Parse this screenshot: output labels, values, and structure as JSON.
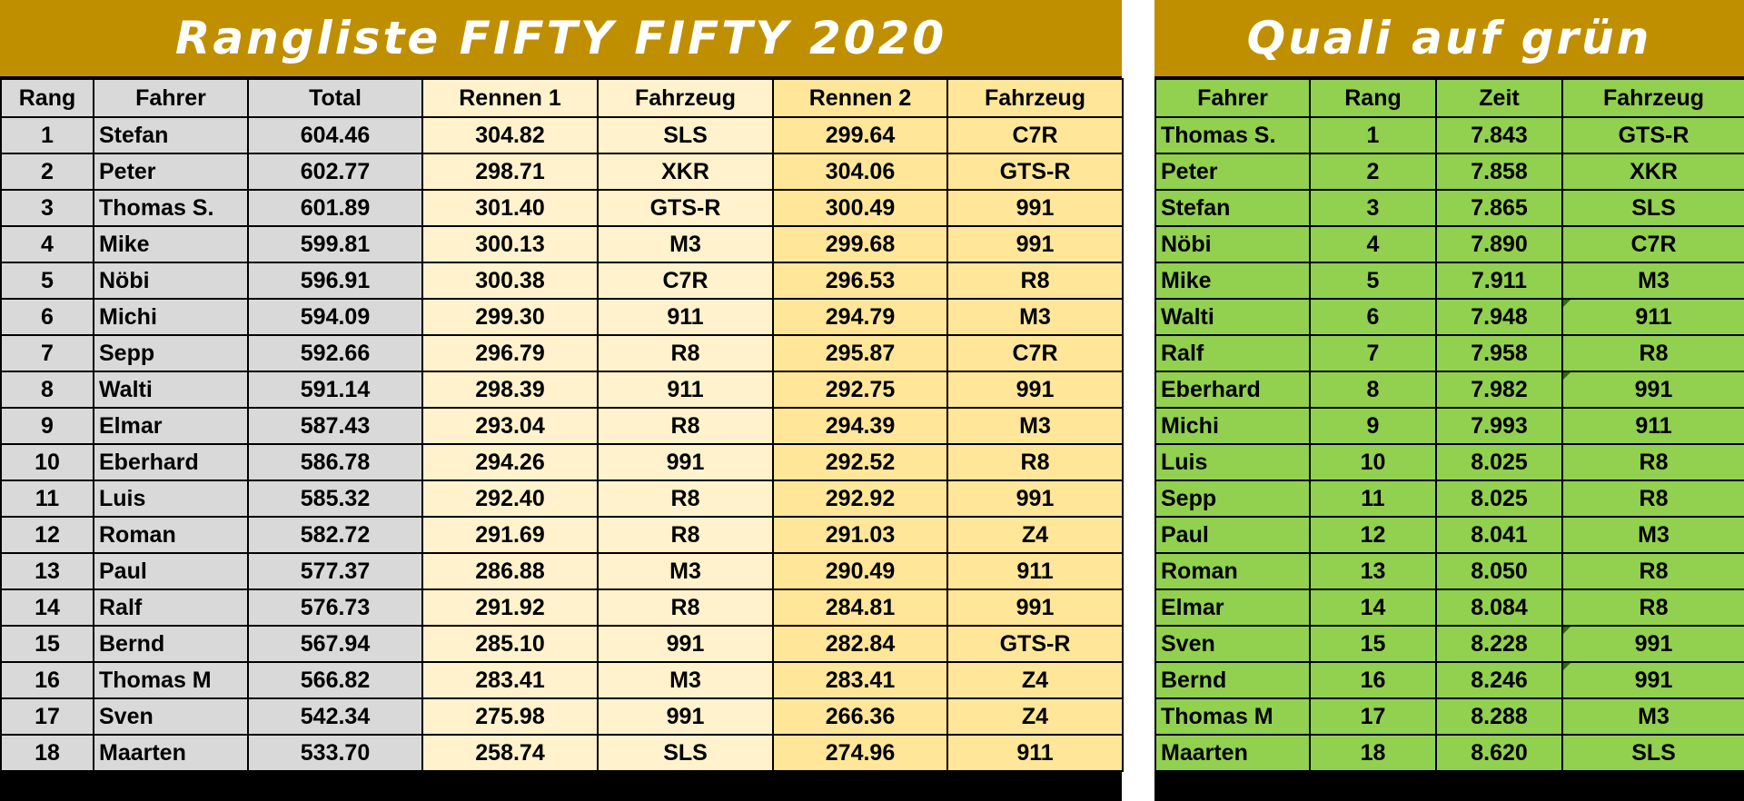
{
  "ranking": {
    "title": "Rangliste FIFTY FIFTY 2020",
    "headers": {
      "rank": "Rang",
      "driver": "Fahrer",
      "total": "Total",
      "race1": "Rennen 1",
      "car1": "Fahrzeug",
      "race2": "Rennen 2",
      "car2": "Fahrzeug"
    },
    "rows": [
      {
        "rank": "1",
        "driver": "Stefan",
        "total": "604.46",
        "race1": "304.82",
        "car1": "SLS",
        "race2": "299.64",
        "car2": "C7R"
      },
      {
        "rank": "2",
        "driver": "Peter",
        "total": "602.77",
        "race1": "298.71",
        "car1": "XKR",
        "race2": "304.06",
        "car2": "GTS-R"
      },
      {
        "rank": "3",
        "driver": "Thomas S.",
        "total": "601.89",
        "race1": "301.40",
        "car1": "GTS-R",
        "race2": "300.49",
        "car2": "991"
      },
      {
        "rank": "4",
        "driver": "Mike",
        "total": "599.81",
        "race1": "300.13",
        "car1": "M3",
        "race2": "299.68",
        "car2": "991"
      },
      {
        "rank": "5",
        "driver": "Nöbi",
        "total": "596.91",
        "race1": "300.38",
        "car1": "C7R",
        "race2": "296.53",
        "car2": "R8"
      },
      {
        "rank": "6",
        "driver": "Michi",
        "total": "594.09",
        "race1": "299.30",
        "car1": "911",
        "race2": "294.79",
        "car2": "M3"
      },
      {
        "rank": "7",
        "driver": "Sepp",
        "total": "592.66",
        "race1": "296.79",
        "car1": "R8",
        "race2": "295.87",
        "car2": "C7R"
      },
      {
        "rank": "8",
        "driver": "Walti",
        "total": "591.14",
        "race1": "298.39",
        "car1": "911",
        "race2": "292.75",
        "car2": "991"
      },
      {
        "rank": "9",
        "driver": "Elmar",
        "total": "587.43",
        "race1": "293.04",
        "car1": "R8",
        "race2": "294.39",
        "car2": "M3"
      },
      {
        "rank": "10",
        "driver": "Eberhard",
        "total": "586.78",
        "race1": "294.26",
        "car1": "991",
        "race2": "292.52",
        "car2": "R8"
      },
      {
        "rank": "11",
        "driver": "Luis",
        "total": "585.32",
        "race1": "292.40",
        "car1": "R8",
        "race2": "292.92",
        "car2": "991"
      },
      {
        "rank": "12",
        "driver": "Roman",
        "total": "582.72",
        "race1": "291.69",
        "car1": "R8",
        "race2": "291.03",
        "car2": "Z4"
      },
      {
        "rank": "13",
        "driver": "Paul",
        "total": "577.37",
        "race1": "286.88",
        "car1": "M3",
        "race2": "290.49",
        "car2": "911"
      },
      {
        "rank": "14",
        "driver": "Ralf",
        "total": "576.73",
        "race1": "291.92",
        "car1": "R8",
        "race2": "284.81",
        "car2": "991"
      },
      {
        "rank": "15",
        "driver": "Bernd",
        "total": "567.94",
        "race1": "285.10",
        "car1": "991",
        "race2": "282.84",
        "car2": "GTS-R"
      },
      {
        "rank": "16",
        "driver": "Thomas M",
        "total": "566.82",
        "race1": "283.41",
        "car1": "M3",
        "race2": "283.41",
        "car2": "Z4"
      },
      {
        "rank": "17",
        "driver": "Sven",
        "total": "542.34",
        "race1": "275.98",
        "car1": "991",
        "race2": "266.36",
        "car2": "Z4"
      },
      {
        "rank": "18",
        "driver": "Maarten",
        "total": "533.70",
        "race1": "258.74",
        "car1": "SLS",
        "race2": "274.96",
        "car2": "911"
      }
    ]
  },
  "quali": {
    "title": "Quali auf grün",
    "headers": {
      "driver": "Fahrer",
      "rank": "Rang",
      "time": "Zeit",
      "car": "Fahrzeug"
    },
    "rows": [
      {
        "driver": "Thomas S.",
        "rank": "1",
        "time": "7.843",
        "car": "GTS-R",
        "flag": false
      },
      {
        "driver": "Peter",
        "rank": "2",
        "time": "7.858",
        "car": "XKR",
        "flag": false
      },
      {
        "driver": "Stefan",
        "rank": "3",
        "time": "7.865",
        "car": "SLS",
        "flag": false
      },
      {
        "driver": "Nöbi",
        "rank": "4",
        "time": "7.890",
        "car": "C7R",
        "flag": false
      },
      {
        "driver": "Mike",
        "rank": "5",
        "time": "7.911",
        "car": "M3",
        "flag": false
      },
      {
        "driver": "Walti",
        "rank": "6",
        "time": "7.948",
        "car": "911",
        "flag": true
      },
      {
        "driver": "Ralf",
        "rank": "7",
        "time": "7.958",
        "car": "R8",
        "flag": false
      },
      {
        "driver": "Eberhard",
        "rank": "8",
        "time": "7.982",
        "car": "991",
        "flag": true
      },
      {
        "driver": "Michi",
        "rank": "9",
        "time": "7.993",
        "car": "911",
        "flag": false
      },
      {
        "driver": "Luis",
        "rank": "10",
        "time": "8.025",
        "car": "R8",
        "flag": false
      },
      {
        "driver": "Sepp",
        "rank": "11",
        "time": "8.025",
        "car": "R8",
        "flag": false
      },
      {
        "driver": "Paul",
        "rank": "12",
        "time": "8.041",
        "car": "M3",
        "flag": false
      },
      {
        "driver": "Roman",
        "rank": "13",
        "time": "8.050",
        "car": "R8",
        "flag": false
      },
      {
        "driver": "Elmar",
        "rank": "14",
        "time": "8.084",
        "car": "R8",
        "flag": false
      },
      {
        "driver": "Sven",
        "rank": "15",
        "time": "8.228",
        "car": "991",
        "flag": true
      },
      {
        "driver": "Bernd",
        "rank": "16",
        "time": "8.246",
        "car": "991",
        "flag": true
      },
      {
        "driver": "Thomas M",
        "rank": "17",
        "time": "8.288",
        "car": "M3",
        "flag": false
      },
      {
        "driver": "Maarten",
        "rank": "18",
        "time": "8.620",
        "car": "SLS",
        "flag": false
      }
    ]
  },
  "colors": {
    "title_bg": "#bf8f00",
    "rank_col_bg": "#d9d9d9",
    "race1_bg": "#fff2cc",
    "race2_bg": "#ffe699",
    "quali_bg": "#92d050"
  }
}
